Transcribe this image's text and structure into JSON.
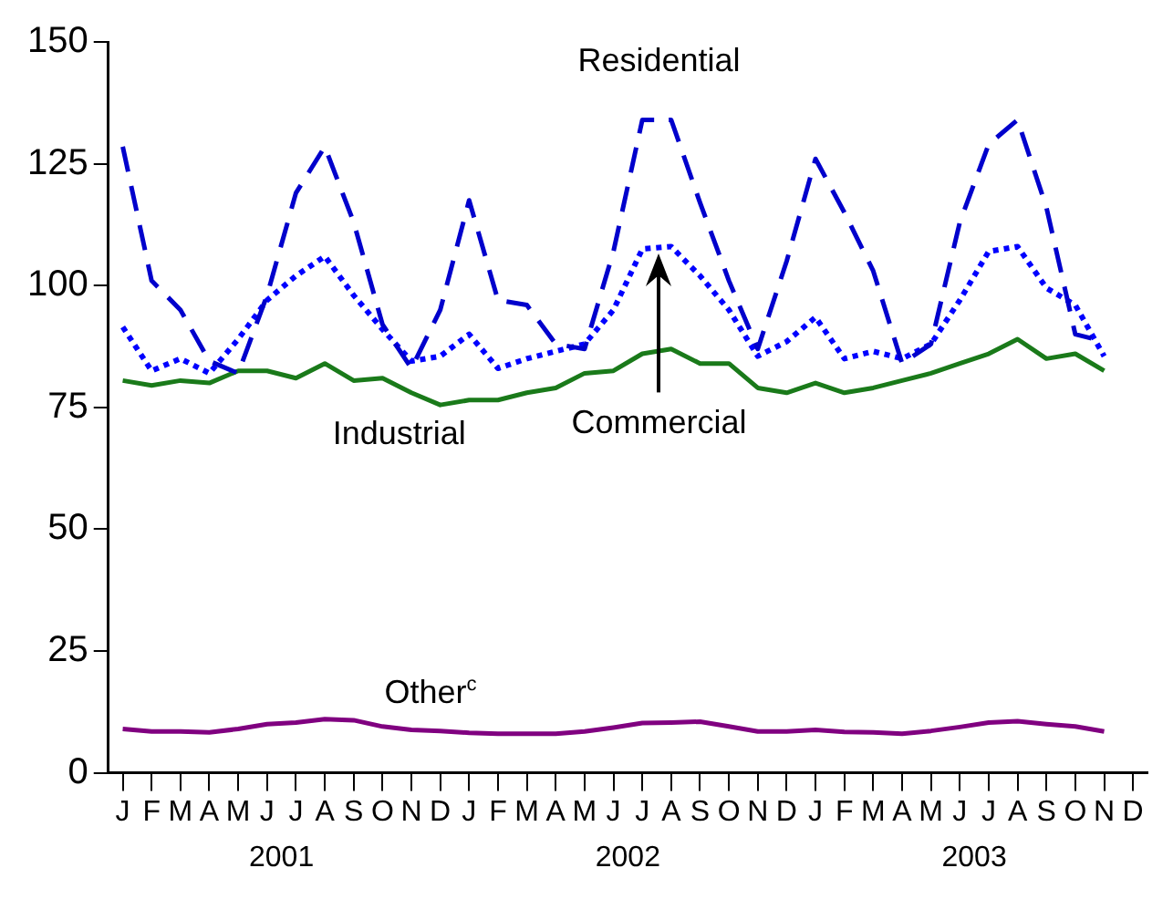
{
  "chart_data": {
    "type": "line",
    "categories": [
      "J",
      "F",
      "M",
      "A",
      "M",
      "J",
      "J",
      "A",
      "S",
      "O",
      "N",
      "D",
      "J",
      "F",
      "M",
      "A",
      "M",
      "J",
      "J",
      "A",
      "S",
      "O",
      "N",
      "D",
      "J",
      "F",
      "M",
      "A",
      "M",
      "J",
      "J",
      "A",
      "S",
      "O",
      "N",
      "D"
    ],
    "series": [
      {
        "name": "Residential",
        "color": "#0000cc",
        "line_style": "dashed",
        "values": [
          128.5,
          101,
          95,
          84.5,
          82,
          98,
          119,
          128.5,
          113,
          92,
          83,
          95,
          117.5,
          97,
          96,
          88,
          87,
          107,
          134,
          134,
          117,
          101,
          87,
          105,
          126,
          115,
          103,
          84,
          88,
          113,
          129,
          134,
          116,
          90,
          88.5,
          null
        ]
      },
      {
        "name": "Commercial",
        "color": "#0000ff",
        "line_style": "dotted",
        "values": [
          91.5,
          82.5,
          85,
          82,
          89,
          97,
          102,
          106,
          98,
          91,
          84.5,
          85.5,
          90,
          83,
          85,
          86.5,
          88,
          95,
          107.5,
          108,
          102,
          95,
          85.5,
          88.5,
          93.5,
          85,
          86.5,
          85,
          88,
          97,
          107,
          108,
          99.5,
          96,
          85.5,
          null
        ]
      },
      {
        "name": "Industrial",
        "color": "#1a7a1a",
        "line_style": "solid",
        "values": [
          80.5,
          79.5,
          80.5,
          80,
          82.5,
          82.5,
          81,
          84,
          80.5,
          81,
          78,
          75.5,
          76.5,
          76.5,
          78,
          79,
          82,
          82.5,
          86,
          87,
          84,
          84,
          79,
          78,
          80,
          78,
          79,
          80.5,
          82,
          84,
          86,
          89,
          85,
          86,
          82.5,
          null
        ]
      },
      {
        "name": "Other$^{c}$",
        "color": "#800080",
        "line_style": "solid",
        "values": [
          9,
          8.5,
          8.5,
          8.3,
          9,
          10,
          10.3,
          11,
          10.8,
          9.5,
          8.8,
          8.6,
          8.2,
          8,
          8,
          8,
          8.5,
          9.3,
          10.2,
          10.3,
          10.5,
          9.5,
          8.5,
          8.5,
          8.8,
          8.4,
          8.3,
          8,
          8.6,
          9.4,
          10.3,
          10.6,
          10,
          9.5,
          8.5,
          null
        ]
      }
    ],
    "annotations": [
      "2001",
      "2002",
      "2003"
    ],
    "ylim": [
      0,
      150
    ],
    "yticks": [
      0,
      25,
      50,
      75,
      100,
      125,
      150
    ],
    "grid": false,
    "legend": false,
    "marker": "none"
  }
}
